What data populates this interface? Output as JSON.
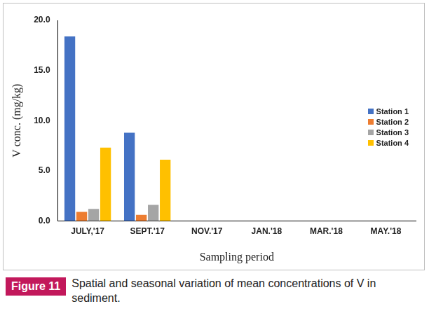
{
  "chart_data": {
    "type": "bar",
    "x_label": "Sampling period",
    "y_label": "V conc. (mg/kg)",
    "categories": [
      "JULY,'17",
      "SEPT.'17",
      "NOV.'17",
      "JAN.'18",
      "MAR.'18",
      "MAY.'18"
    ],
    "series": [
      {
        "name": "Station 1",
        "color": "#4472c4",
        "values": [
          18.4,
          8.8,
          0,
          0,
          0,
          0
        ]
      },
      {
        "name": "Station 2",
        "color": "#ed7d31",
        "values": [
          0.9,
          0.6,
          0,
          0,
          0,
          0
        ]
      },
      {
        "name": "Station 3",
        "color": "#a5a5a5",
        "values": [
          1.2,
          1.6,
          0,
          0,
          0,
          0
        ]
      },
      {
        "name": "Station 4",
        "color": "#ffc000",
        "values": [
          7.3,
          6.1,
          0,
          0,
          0,
          0
        ]
      }
    ],
    "ylim": [
      0,
      20
    ],
    "yticks": [
      {
        "value": 0,
        "label": "0.0"
      },
      {
        "value": 5,
        "label": "5.0"
      },
      {
        "value": 10,
        "label": "10.0"
      },
      {
        "value": 15,
        "label": "15.0"
      },
      {
        "value": 20,
        "label": "20.0"
      }
    ],
    "grid": false,
    "legend": "right"
  },
  "caption": {
    "label": "Figure 11",
    "text": "Spatial and seasonal variation of mean concentrations of V in sediment."
  }
}
